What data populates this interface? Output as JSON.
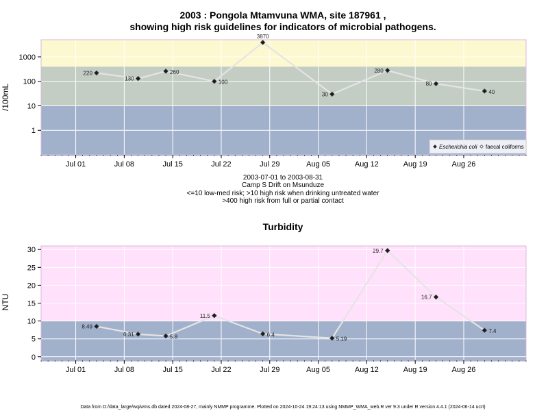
{
  "chart_data": [
    {
      "type": "line",
      "title_line1": "2003 : Pongola Mtamvuna WMA, site 187961 ,",
      "title_line2": "showing high risk guidelines for indicators of microbial pathogens.",
      "ylabel": "/100mL",
      "log_scale": true,
      "ylim": [
        0.1,
        5000
      ],
      "yticks": [
        1,
        10,
        100,
        1000
      ],
      "ytick_labels": [
        "1",
        "10",
        "100",
        "1000"
      ],
      "xlim": [
        "2003-06-26",
        "2003-09-04"
      ],
      "xticks": [
        "2003-07-01",
        "2003-07-08",
        "2003-07-15",
        "2003-07-22",
        "2003-07-29",
        "2003-08-05",
        "2003-08-12",
        "2003-08-19",
        "2003-08-26"
      ],
      "xtick_labels": [
        "Jul 01",
        "Jul 08",
        "Jul 15",
        "Jul 22",
        "Jul 29",
        "Aug 05",
        "Aug 12",
        "Aug 19",
        "Aug 26"
      ],
      "bands": [
        {
          "from": 0.1,
          "to": 10,
          "color": "#a1b1cb"
        },
        {
          "from": 10,
          "to": 400,
          "color": "#c3cdc4"
        },
        {
          "from": 400,
          "to": 5000,
          "color": "#fcf8cf"
        }
      ],
      "line_color": "#e4e4e4",
      "series": [
        {
          "name": "Escherichia coli",
          "x": [
            "2003-07-04",
            "2003-07-10",
            "2003-07-14",
            "2003-07-21",
            "2003-07-28",
            "2003-08-07",
            "2003-08-15",
            "2003-08-22",
            "2003-08-29"
          ],
          "values": [
            220,
            130,
            260,
            100,
            3870,
            30,
            280,
            80,
            40
          ],
          "labels": [
            "220",
            "130",
            "260",
            "100",
            "3870",
            "30",
            "280",
            "80",
            "40"
          ],
          "label_pos": [
            "left",
            "left",
            "right",
            "right",
            "top",
            "left",
            "left",
            "left",
            "right"
          ]
        }
      ],
      "legend": {
        "placement": "bottom-right",
        "items": [
          {
            "label": "Escherichia coli",
            "marker": "filled-diamond"
          },
          {
            "label": "faecal coliforms",
            "marker": "open-diamond"
          }
        ]
      },
      "caption": [
        "2003-07-01 to 2003-08-31",
        "Camp S Drift on Msunduze",
        "<=10 low-med risk; >10 high risk when drinking untreated water",
        ">400 high risk from full or partial contact"
      ]
    },
    {
      "type": "line",
      "title": "Turbidity",
      "ylabel": "NTU",
      "log_scale": false,
      "ylim": [
        -1,
        31
      ],
      "yticks": [
        0,
        5,
        10,
        15,
        20,
        25,
        30
      ],
      "ytick_labels": [
        "0",
        "5",
        "10",
        "15",
        "20",
        "25",
        "30"
      ],
      "xlim": [
        "2003-06-26",
        "2003-09-04"
      ],
      "xticks": [
        "2003-07-01",
        "2003-07-08",
        "2003-07-15",
        "2003-07-22",
        "2003-07-29",
        "2003-08-05",
        "2003-08-12",
        "2003-08-19",
        "2003-08-26"
      ],
      "xtick_labels": [
        "Jul 01",
        "Jul 08",
        "Jul 15",
        "Jul 22",
        "Jul 29",
        "Aug 05",
        "Aug 12",
        "Aug 19",
        "Aug 26"
      ],
      "bands": [
        {
          "from": -1,
          "to": 10,
          "color": "#a1b1cb"
        },
        {
          "from": 10,
          "to": 31,
          "color": "#ffe1fb"
        }
      ],
      "line_color": "#e4e4e4",
      "series": [
        {
          "x": [
            "2003-07-04",
            "2003-07-10",
            "2003-07-14",
            "2003-07-21",
            "2003-07-28",
            "2003-08-07",
            "2003-08-15",
            "2003-08-22",
            "2003-08-29"
          ],
          "values": [
            8.49,
            6.31,
            5.8,
            11.5,
            6.4,
            5.19,
            29.7,
            16.7,
            7.4
          ],
          "labels": [
            "8.49",
            "6.31",
            "5.8",
            "11.5",
            "6.4",
            "5.19",
            "29.7",
            "16.7",
            "7.4"
          ],
          "label_pos": [
            "left",
            "left",
            "right",
            "left",
            "right",
            "right",
            "left",
            "left",
            "right"
          ]
        }
      ]
    }
  ],
  "footer": "Data from D:/data_large/wq/wms.db dated 2024-08-27, mainly NMMP programme. Plotted on 2024-10-24 19:24:13 using NMMP_WMA_web.R ver 9.3 under R version 4.4.1 (2024-06-14 ucrt)"
}
